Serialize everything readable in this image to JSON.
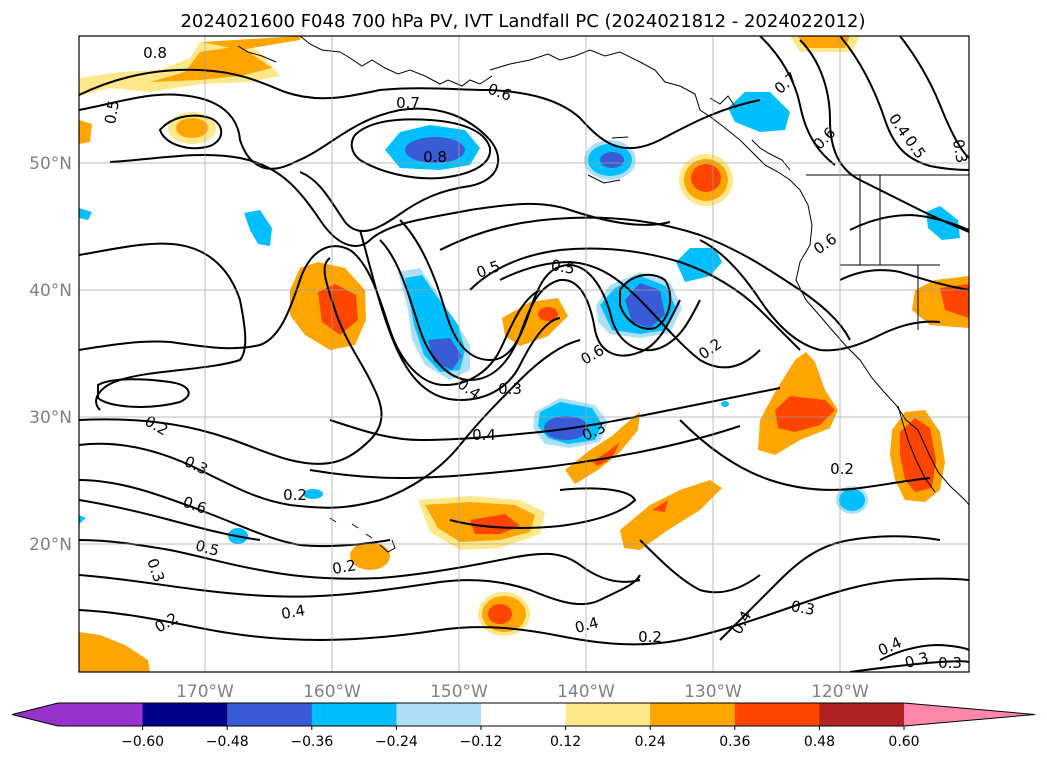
{
  "title": "2024021600 F048 700 hPa PV, IVT Landfall PC (2024021812 - 2024022012)",
  "lat_labels": [
    "50°N",
    "40°N",
    "30°N",
    "20°N"
  ],
  "lon_labels": [
    "170°W",
    "160°W",
    "150°W",
    "140°W",
    "130°W",
    "120°W"
  ],
  "colorbar": {
    "colors": [
      "#9932cc",
      "#00008b",
      "#3a5bd6",
      "#00bfff",
      "#ade0f7",
      "#ffffff",
      "#ffe88a",
      "#ffa500",
      "#ff4500",
      "#b22222",
      "#ff88aa"
    ],
    "tick_labels": [
      "−0.60",
      "−0.48",
      "−0.36",
      "−0.24",
      "−0.12",
      "0.12",
      "0.24",
      "0.36",
      "0.48",
      "0.60"
    ]
  },
  "contour_labels": [
    "0.8",
    "0.5",
    "0.7",
    "0.6",
    "0.8",
    "0.7",
    "0.6",
    "0.4",
    "0.5",
    "0.3",
    "0.5",
    "0.5",
    "0.6",
    "0.2",
    "0.6",
    "0.4",
    "0.3",
    "0.4",
    "0.3",
    "0.2",
    "0.3",
    "0.6",
    "0.5",
    "0.2",
    "0.3",
    "0.2",
    "0.4",
    "0.2",
    "0.4",
    "0.2",
    "0.3",
    "0.4",
    "0.4",
    "0.3",
    "0.2",
    "0.3"
  ]
}
